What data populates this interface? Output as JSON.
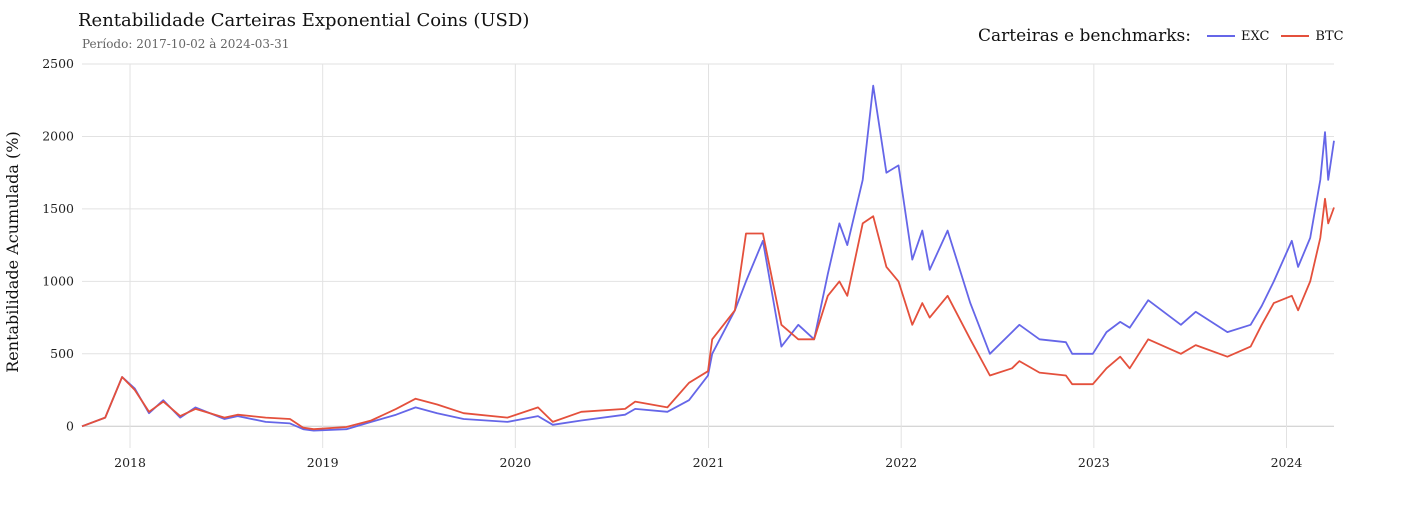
{
  "chart_data": {
    "type": "line",
    "title": "Rentabilidade Carteiras Exponential Coins (USD)",
    "subtitle": "Período: 2017-10-02 à 2024-03-31",
    "ylabel": "Rentabilidade Acumulada (%)",
    "xlabel": "",
    "ylim": [
      -150,
      2500
    ],
    "xlim": [
      "2017-10-02",
      "2024-03-31"
    ],
    "x_ticks": [
      "2018",
      "2019",
      "2020",
      "2021",
      "2022",
      "2023",
      "2024"
    ],
    "y_ticks": [
      0,
      500,
      1000,
      1500,
      2000,
      2500
    ],
    "grid": true,
    "legend": {
      "title": "Carteiras e benchmarks:",
      "placement": "top-right"
    },
    "series": [
      {
        "name": "EXC",
        "color": "#6566e8",
        "points": [
          [
            "2017-10-02",
            0
          ],
          [
            "2017-11-15",
            60
          ],
          [
            "2017-12-17",
            340
          ],
          [
            "2018-01-10",
            260
          ],
          [
            "2018-02-06",
            90
          ],
          [
            "2018-03-05",
            180
          ],
          [
            "2018-04-06",
            60
          ],
          [
            "2018-05-05",
            130
          ],
          [
            "2018-06-29",
            50
          ],
          [
            "2018-07-24",
            70
          ],
          [
            "2018-09-15",
            30
          ],
          [
            "2018-10-31",
            20
          ],
          [
            "2018-11-25",
            -20
          ],
          [
            "2018-12-15",
            -30
          ],
          [
            "2019-02-15",
            -20
          ],
          [
            "2019-04-03",
            30
          ],
          [
            "2019-05-20",
            80
          ],
          [
            "2019-06-26",
            130
          ],
          [
            "2019-08-06",
            90
          ],
          [
            "2019-09-25",
            50
          ],
          [
            "2019-12-17",
            30
          ],
          [
            "2020-02-13",
            70
          ],
          [
            "2020-03-12",
            10
          ],
          [
            "2020-05-05",
            40
          ],
          [
            "2020-07-27",
            80
          ],
          [
            "2020-08-15",
            120
          ],
          [
            "2020-10-15",
            100
          ],
          [
            "2020-11-25",
            180
          ],
          [
            "2020-12-31",
            350
          ],
          [
            "2021-01-08",
            500
          ],
          [
            "2021-02-20",
            800
          ],
          [
            "2021-03-13",
            1000
          ],
          [
            "2021-04-14",
            1280
          ],
          [
            "2021-05-19",
            550
          ],
          [
            "2021-06-20",
            700
          ],
          [
            "2021-07-20",
            600
          ],
          [
            "2021-08-15",
            1050
          ],
          [
            "2021-09-06",
            1400
          ],
          [
            "2021-09-21",
            1250
          ],
          [
            "2021-10-20",
            1700
          ],
          [
            "2021-11-09",
            2350
          ],
          [
            "2021-12-04",
            1750
          ],
          [
            "2021-12-27",
            1800
          ],
          [
            "2022-01-22",
            1150
          ],
          [
            "2022-02-10",
            1350
          ],
          [
            "2022-02-24",
            1080
          ],
          [
            "2022-03-30",
            1350
          ],
          [
            "2022-05-12",
            850
          ],
          [
            "2022-06-18",
            500
          ],
          [
            "2022-07-30",
            650
          ],
          [
            "2022-08-13",
            700
          ],
          [
            "2022-09-20",
            600
          ],
          [
            "2022-11-09",
            580
          ],
          [
            "2022-11-21",
            500
          ],
          [
            "2022-12-30",
            500
          ],
          [
            "2023-01-25",
            650
          ],
          [
            "2023-02-20",
            720
          ],
          [
            "2023-03-10",
            680
          ],
          [
            "2023-04-14",
            870
          ],
          [
            "2023-06-15",
            700
          ],
          [
            "2023-07-13",
            790
          ],
          [
            "2023-09-11",
            650
          ],
          [
            "2023-10-25",
            700
          ],
          [
            "2023-11-15",
            830
          ],
          [
            "2023-12-08",
            1000
          ],
          [
            "2024-01-11",
            1280
          ],
          [
            "2024-01-23",
            1100
          ],
          [
            "2024-02-15",
            1300
          ],
          [
            "2024-03-05",
            1700
          ],
          [
            "2024-03-14",
            2030
          ],
          [
            "2024-03-20",
            1700
          ],
          [
            "2024-03-31",
            1970
          ]
        ]
      },
      {
        "name": "BTC",
        "color": "#e4503c",
        "points": [
          [
            "2017-10-02",
            0
          ],
          [
            "2017-11-15",
            60
          ],
          [
            "2017-12-17",
            340
          ],
          [
            "2018-01-10",
            250
          ],
          [
            "2018-02-06",
            100
          ],
          [
            "2018-03-05",
            170
          ],
          [
            "2018-04-06",
            70
          ],
          [
            "2018-05-05",
            120
          ],
          [
            "2018-06-29",
            60
          ],
          [
            "2018-07-24",
            80
          ],
          [
            "2018-09-15",
            60
          ],
          [
            "2018-10-31",
            50
          ],
          [
            "2018-11-25",
            -10
          ],
          [
            "2018-12-15",
            -20
          ],
          [
            "2019-02-15",
            -5
          ],
          [
            "2019-04-03",
            40
          ],
          [
            "2019-05-20",
            120
          ],
          [
            "2019-06-26",
            190
          ],
          [
            "2019-08-06",
            150
          ],
          [
            "2019-09-25",
            90
          ],
          [
            "2019-12-17",
            60
          ],
          [
            "2020-02-13",
            130
          ],
          [
            "2020-03-12",
            30
          ],
          [
            "2020-05-05",
            100
          ],
          [
            "2020-07-27",
            120
          ],
          [
            "2020-08-15",
            170
          ],
          [
            "2020-10-15",
            130
          ],
          [
            "2020-11-25",
            300
          ],
          [
            "2020-12-31",
            380
          ],
          [
            "2021-01-08",
            600
          ],
          [
            "2021-02-20",
            800
          ],
          [
            "2021-03-13",
            1330
          ],
          [
            "2021-04-14",
            1330
          ],
          [
            "2021-05-19",
            700
          ],
          [
            "2021-06-20",
            600
          ],
          [
            "2021-07-20",
            600
          ],
          [
            "2021-08-15",
            900
          ],
          [
            "2021-09-06",
            1000
          ],
          [
            "2021-09-21",
            900
          ],
          [
            "2021-10-20",
            1400
          ],
          [
            "2021-11-09",
            1450
          ],
          [
            "2021-12-04",
            1100
          ],
          [
            "2021-12-27",
            1000
          ],
          [
            "2022-01-22",
            700
          ],
          [
            "2022-02-10",
            850
          ],
          [
            "2022-02-24",
            750
          ],
          [
            "2022-03-30",
            900
          ],
          [
            "2022-05-12",
            600
          ],
          [
            "2022-06-18",
            350
          ],
          [
            "2022-07-30",
            400
          ],
          [
            "2022-08-13",
            450
          ],
          [
            "2022-09-20",
            370
          ],
          [
            "2022-11-09",
            350
          ],
          [
            "2022-11-21",
            290
          ],
          [
            "2022-12-30",
            290
          ],
          [
            "2023-01-25",
            400
          ],
          [
            "2023-02-20",
            480
          ],
          [
            "2023-03-10",
            400
          ],
          [
            "2023-04-14",
            600
          ],
          [
            "2023-06-15",
            500
          ],
          [
            "2023-07-13",
            560
          ],
          [
            "2023-09-11",
            480
          ],
          [
            "2023-10-25",
            550
          ],
          [
            "2023-11-15",
            700
          ],
          [
            "2023-12-08",
            850
          ],
          [
            "2024-01-11",
            900
          ],
          [
            "2024-01-23",
            800
          ],
          [
            "2024-02-15",
            1000
          ],
          [
            "2024-03-05",
            1300
          ],
          [
            "2024-03-14",
            1570
          ],
          [
            "2024-03-20",
            1400
          ],
          [
            "2024-03-31",
            1510
          ]
        ]
      }
    ]
  }
}
